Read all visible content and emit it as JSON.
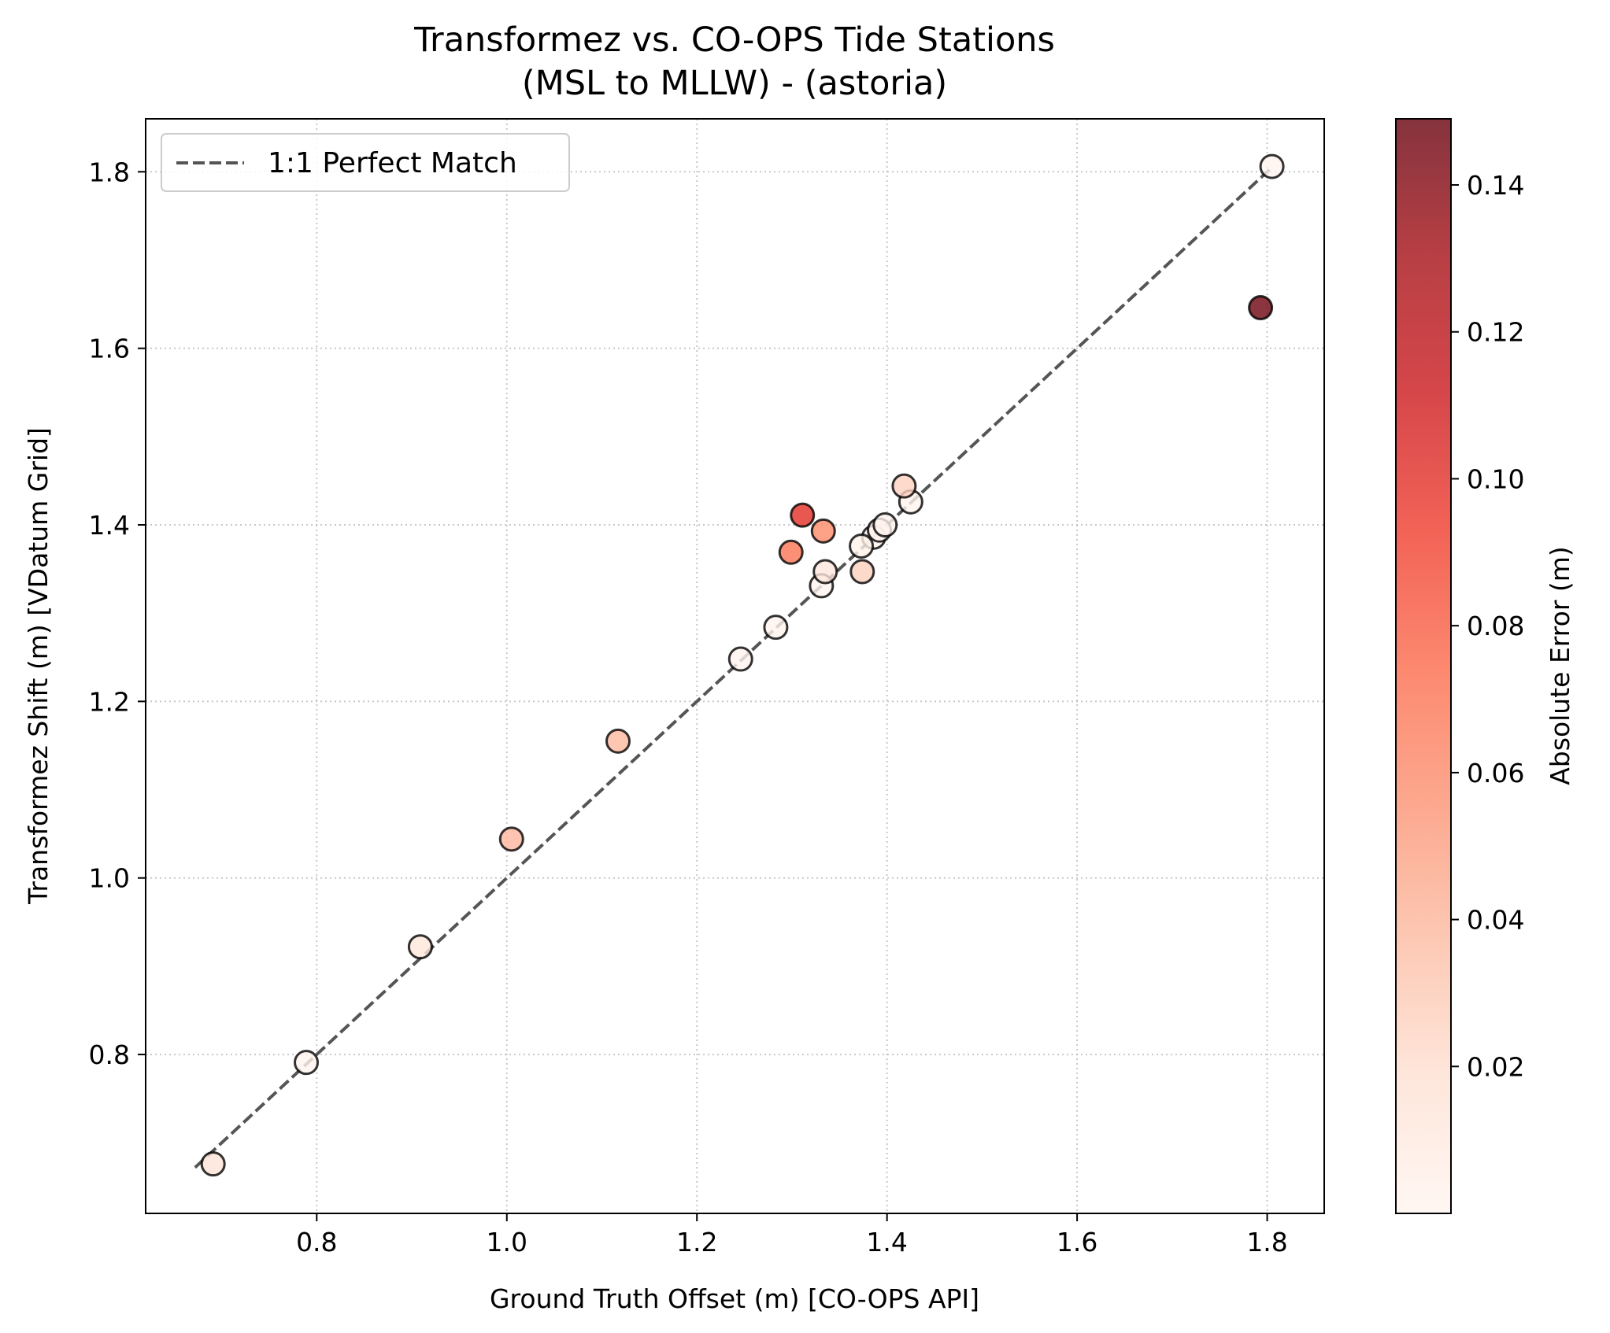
{
  "chart_data": {
    "type": "scatter",
    "title_line1": "Transformez vs. CO-OPS Tide Stations",
    "title_line2": "(MSL to MLLW) - (astoria)",
    "xlabel": "Ground Truth Offset (m) [CO-OPS API]",
    "ylabel": "Transformez Shift (m) [VDatum Grid]",
    "xlim": [
      0.62,
      1.86
    ],
    "ylim": [
      0.62,
      1.86
    ],
    "xticks": [
      0.8,
      1.0,
      1.2,
      1.4,
      1.6,
      1.8
    ],
    "xtick_labels": [
      "0.8",
      "1.0",
      "1.2",
      "1.4",
      "1.6",
      "1.8"
    ],
    "yticks": [
      0.8,
      1.0,
      1.2,
      1.4,
      1.6,
      1.8
    ],
    "ytick_labels": [
      "0.8",
      "1.0",
      "1.2",
      "1.4",
      "1.6",
      "1.8"
    ],
    "grid": true,
    "legend": {
      "placement": "upper-left",
      "label": "1:1 Perfect Match"
    },
    "reference_line": {
      "x": [
        0.672,
        1.805
      ],
      "y": [
        0.672,
        1.805
      ],
      "color": "#555555",
      "style": "dashed"
    },
    "colorbar": {
      "label": "Absolute Error (m)",
      "cmap": "Reds",
      "min": 0.0,
      "max": 0.149,
      "ticks": [
        0.02,
        0.04,
        0.06,
        0.08,
        0.1,
        0.12,
        0.14
      ],
      "tick_labels": [
        "0.02",
        "0.04",
        "0.06",
        "0.08",
        "0.10",
        "0.12",
        "0.14"
      ]
    },
    "points": [
      {
        "x": 0.691,
        "y": 0.676,
        "error": 0.015
      },
      {
        "x": 0.789,
        "y": 0.791,
        "error": 0.002
      },
      {
        "x": 0.909,
        "y": 0.922,
        "error": 0.013
      },
      {
        "x": 1.005,
        "y": 1.044,
        "error": 0.039
      },
      {
        "x": 1.117,
        "y": 1.155,
        "error": 0.038
      },
      {
        "x": 1.246,
        "y": 1.248,
        "error": 0.002
      },
      {
        "x": 1.283,
        "y": 1.284,
        "error": 0.001
      },
      {
        "x": 1.299,
        "y": 1.369,
        "error": 0.07
      },
      {
        "x": 1.311,
        "y": 1.411,
        "error": 0.1
      },
      {
        "x": 1.331,
        "y": 1.331,
        "error": 0.001
      },
      {
        "x": 1.333,
        "y": 1.393,
        "error": 0.06
      },
      {
        "x": 1.335,
        "y": 1.347,
        "error": 0.012
      },
      {
        "x": 1.373,
        "y": 1.376,
        "error": 0.003
      },
      {
        "x": 1.374,
        "y": 1.347,
        "error": 0.027
      },
      {
        "x": 1.386,
        "y": 1.386,
        "error": 0.001
      },
      {
        "x": 1.392,
        "y": 1.394,
        "error": 0.002
      },
      {
        "x": 1.398,
        "y": 1.4,
        "error": 0.002
      },
      {
        "x": 1.418,
        "y": 1.444,
        "error": 0.026
      },
      {
        "x": 1.425,
        "y": 1.426,
        "error": 0.001
      },
      {
        "x": 1.793,
        "y": 1.646,
        "error": 0.147
      },
      {
        "x": 1.805,
        "y": 1.806,
        "error": 0.001
      }
    ]
  }
}
